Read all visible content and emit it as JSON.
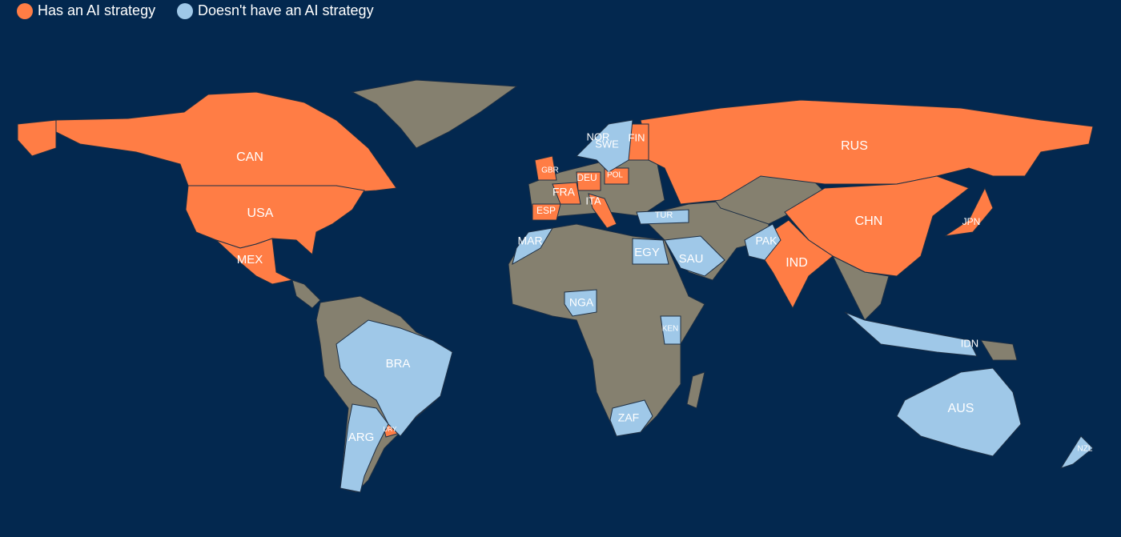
{
  "legend": [
    {
      "label": "Has an AI strategy",
      "color": "#ff7d45",
      "countries": [
        "CAN",
        "USA",
        "MEX",
        "RUS",
        "CHN",
        "IND",
        "JPN",
        "FIN",
        "GBR",
        "DEU",
        "FRA",
        "ESP",
        "ITA",
        "POL",
        "URY"
      ]
    },
    {
      "label": "Doesn't have an AI strategy",
      "color": "#9fc8e8",
      "countries": [
        "NOR",
        "SWE",
        "TUR",
        "MAR",
        "EGY",
        "SAU",
        "PAK",
        "NGA",
        "KEN",
        "ZAF",
        "BRA",
        "ARG",
        "AUS",
        "IDN",
        "NZL"
      ]
    }
  ]
}
